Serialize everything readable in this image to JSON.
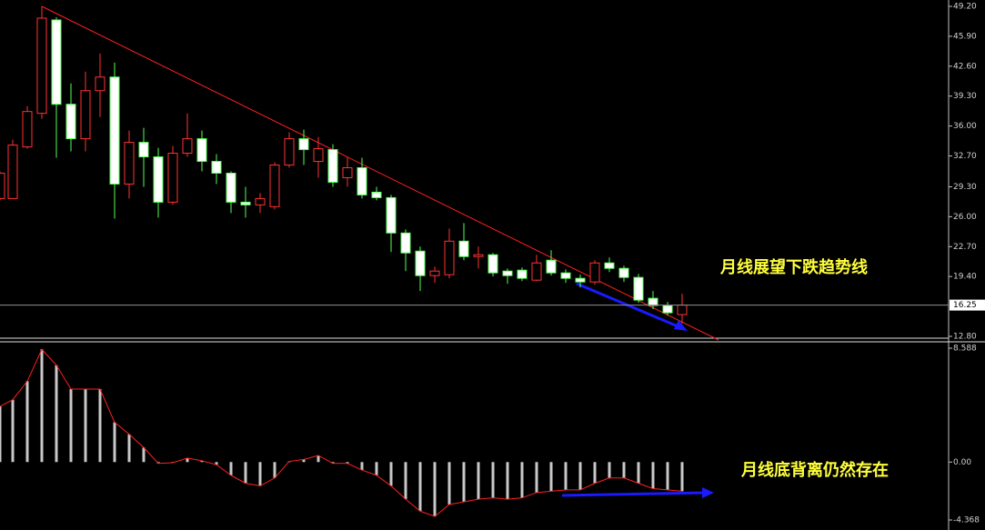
{
  "chart_data": [
    {
      "type": "candlestick",
      "up_color": "#ff3232",
      "down_color": "#ffffff",
      "down_edge": "#54ff54",
      "open": [
        28.0,
        28.0,
        33.7,
        37.4,
        47.7,
        38.4,
        34.6,
        39.9,
        41.4,
        29.6,
        34.2,
        32.6,
        27.6,
        33.0,
        34.6,
        32.1,
        30.8,
        27.6,
        27.3,
        27.1,
        31.7,
        34.6,
        32.1,
        33.4,
        30.3,
        31.4,
        28.7,
        28.1,
        24.2,
        22.2,
        19.5,
        19.6,
        23.3,
        21.6,
        21.8,
        20.0,
        20.1,
        19.0,
        21.2,
        19.8,
        19.2,
        18.8,
        20.9,
        20.3,
        19.3,
        17.0,
        16.2,
        15.2
      ],
      "high": [
        31.0,
        34.5,
        38.2,
        49.2,
        48.0,
        40.7,
        42.0,
        44.0,
        43.0,
        35.5,
        35.8,
        33.6,
        33.8,
        37.4,
        35.5,
        32.9,
        31.0,
        29.3,
        28.6,
        32.0,
        35.3,
        35.6,
        34.8,
        34.0,
        32.6,
        32.5,
        29.3,
        28.4,
        24.6,
        22.7,
        20.5,
        24.7,
        25.3,
        22.7,
        22.0,
        20.3,
        20.4,
        21.8,
        22.3,
        20.2,
        19.6,
        21.2,
        21.5,
        20.6,
        19.7,
        17.8,
        16.6,
        17.5
      ],
      "low": [
        27.8,
        28.0,
        33.5,
        36.8,
        32.5,
        33.2,
        33.2,
        37.0,
        25.8,
        28.0,
        29.3,
        25.9,
        27.3,
        32.6,
        31.0,
        29.6,
        26.4,
        25.9,
        26.4,
        26.8,
        31.4,
        31.7,
        30.3,
        29.3,
        29.3,
        28.0,
        27.8,
        22.1,
        20.0,
        17.8,
        18.7,
        19.2,
        21.2,
        20.3,
        19.4,
        18.6,
        18.9,
        18.9,
        19.5,
        18.7,
        18.2,
        18.5,
        19.9,
        18.8,
        16.5,
        15.8,
        15.1,
        14.2
      ],
      "close": [
        30.8,
        33.9,
        37.6,
        47.9,
        38.4,
        34.6,
        39.9,
        41.4,
        29.6,
        34.2,
        32.6,
        27.6,
        33.0,
        34.6,
        32.1,
        30.8,
        27.6,
        27.3,
        28.0,
        31.7,
        34.6,
        33.4,
        33.5,
        29.8,
        31.4,
        28.4,
        28.1,
        24.2,
        22.0,
        19.5,
        20.0,
        23.3,
        21.6,
        21.8,
        19.8,
        19.5,
        19.2,
        20.9,
        19.8,
        19.2,
        18.8,
        20.9,
        20.3,
        19.3,
        16.8,
        16.2,
        15.4,
        16.25
      ],
      "ylim": [
        12.8,
        49.2
      ],
      "yticks": [
        {
          "value": 12.8,
          "label": "12.80"
        },
        {
          "value": 19.4,
          "label": "19.40"
        },
        {
          "value": 22.7,
          "label": "22.70"
        },
        {
          "value": 26,
          "label": "26.00"
        },
        {
          "value": 29.3,
          "label": "29.30"
        },
        {
          "value": 32.7,
          "label": "32.70"
        },
        {
          "value": 36,
          "label": "36.00"
        },
        {
          "value": 39.3,
          "label": "39.30"
        },
        {
          "value": 42.6,
          "label": "42.60"
        },
        {
          "value": 45.9,
          "label": "45.90"
        },
        {
          "value": 49.2,
          "label": "49.20"
        }
      ],
      "last_price": {
        "value": 16.25,
        "label": "16.25"
      },
      "annotation": "月线展望下跌趋势线"
    },
    {
      "type": "macd",
      "color": "#c8c8c8",
      "line_color": "#ff2020",
      "values": [
        4.2,
        4.7,
        6.1,
        8.5,
        7.3,
        5.5,
        5.5,
        5.5,
        3.0,
        2.1,
        1.1,
        -0.1,
        -0.05,
        0.3,
        0.1,
        -0.2,
        -1.0,
        -1.6,
        -1.8,
        -1.2,
        0.05,
        0.2,
        0.5,
        -0.1,
        -0.1,
        -0.6,
        -1.0,
        -1.8,
        -2.8,
        -3.7,
        -4.1,
        -3.2,
        -3.0,
        -2.8,
        -2.7,
        -2.8,
        -2.7,
        -2.3,
        -2.2,
        -2.1,
        -2.1,
        -1.6,
        -1.2,
        -1.2,
        -1.6,
        -2.0,
        -2.1,
        -2.2
      ],
      "ylim": [
        -4.368,
        8.588
      ],
      "yticks": [
        -4.368,
        {
          "value": 0,
          "label": "0.00"
        },
        8.588
      ],
      "annotation": "月线底背离仍然存在"
    }
  ]
}
